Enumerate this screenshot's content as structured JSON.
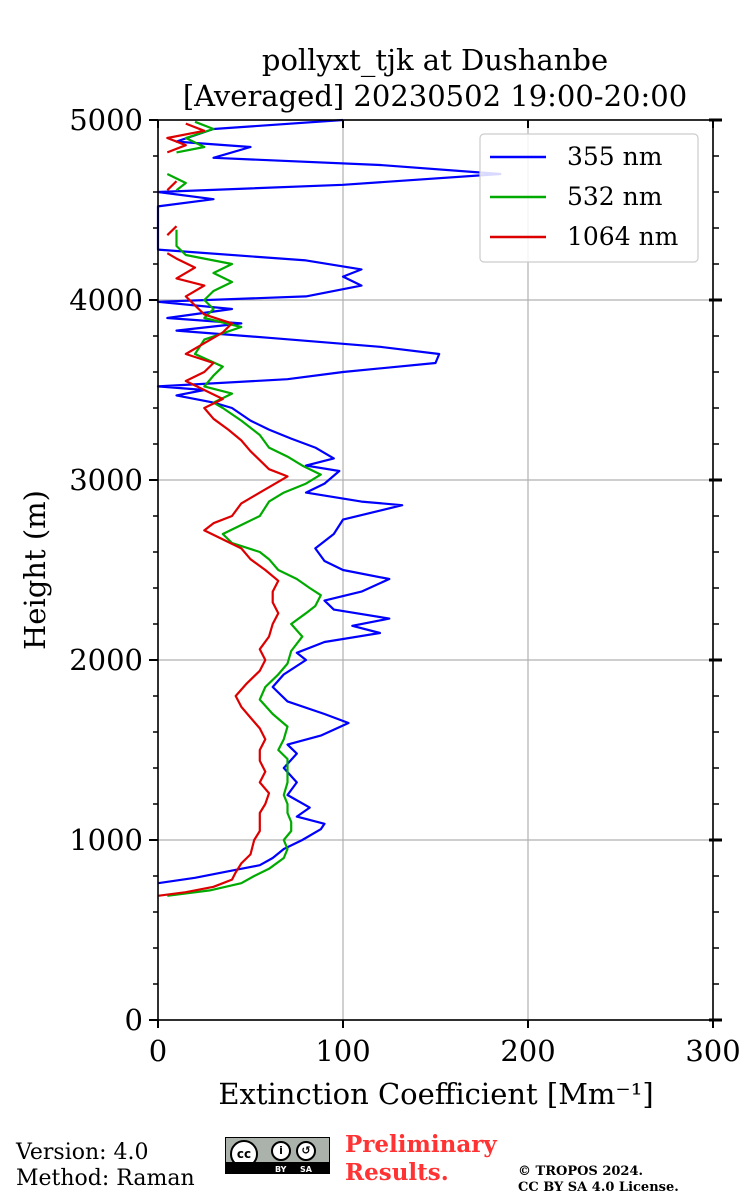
{
  "chart_data": {
    "type": "line",
    "title": [
      "pollyxt_tjk at Dushanbe",
      "[Averaged] 20230502 19:00-20:00"
    ],
    "xlabel": "Extinction Coefficient [Mm⁻¹]",
    "ylabel": "Height (m)",
    "xlim": [
      0,
      300
    ],
    "ylim": [
      0,
      5000
    ],
    "xticks": [
      0,
      100,
      200,
      300
    ],
    "yticks": [
      0,
      1000,
      2000,
      3000,
      4000,
      5000
    ],
    "grid": true,
    "legend_position": "upper-right",
    "series": [
      {
        "name": "355 nm",
        "color": "#0000ff",
        "points": [
          [
            0,
            760
          ],
          [
            20,
            790
          ],
          [
            40,
            830
          ],
          [
            55,
            860
          ],
          [
            62,
            900
          ],
          [
            68,
            950
          ],
          [
            78,
            1000
          ],
          [
            88,
            1060
          ],
          [
            90,
            1090
          ],
          [
            75,
            1130
          ],
          [
            82,
            1180
          ],
          [
            70,
            1250
          ],
          [
            75,
            1320
          ],
          [
            68,
            1400
          ],
          [
            75,
            1480
          ],
          [
            70,
            1530
          ],
          [
            88,
            1580
          ],
          [
            103,
            1650
          ],
          [
            90,
            1700
          ],
          [
            70,
            1770
          ],
          [
            62,
            1850
          ],
          [
            68,
            1920
          ],
          [
            80,
            2000
          ],
          [
            75,
            2040
          ],
          [
            90,
            2100
          ],
          [
            120,
            2150
          ],
          [
            105,
            2190
          ],
          [
            125,
            2230
          ],
          [
            95,
            2280
          ],
          [
            90,
            2330
          ],
          [
            110,
            2380
          ],
          [
            125,
            2450
          ],
          [
            100,
            2500
          ],
          [
            90,
            2550
          ],
          [
            85,
            2620
          ],
          [
            95,
            2700
          ],
          [
            100,
            2780
          ],
          [
            132,
            2860
          ],
          [
            110,
            2880
          ],
          [
            80,
            2930
          ],
          [
            90,
            2980
          ],
          [
            98,
            3050
          ],
          [
            80,
            3080
          ],
          [
            95,
            3120
          ],
          [
            85,
            3180
          ],
          [
            72,
            3230
          ],
          [
            60,
            3280
          ],
          [
            50,
            3330
          ],
          [
            40,
            3400
          ],
          [
            30,
            3430
          ],
          [
            10,
            3470
          ],
          [
            25,
            3500
          ],
          [
            0,
            3520
          ],
          [
            70,
            3560
          ],
          [
            100,
            3600
          ],
          [
            150,
            3650
          ],
          [
            152,
            3700
          ],
          [
            120,
            3740
          ],
          [
            60,
            3790
          ],
          [
            10,
            3830
          ],
          [
            45,
            3870
          ],
          [
            5,
            3900
          ],
          [
            40,
            3950
          ],
          [
            0,
            3990
          ],
          [
            80,
            4020
          ],
          [
            110,
            4080
          ],
          [
            100,
            4130
          ],
          [
            110,
            4170
          ],
          [
            80,
            4220
          ],
          [
            0,
            4280
          ],
          [
            0,
            4520
          ],
          [
            30,
            4560
          ],
          [
            0,
            4600
          ],
          [
            100,
            4640
          ],
          [
            185,
            4700
          ],
          [
            120,
            4750
          ],
          [
            30,
            4790
          ],
          [
            50,
            4850
          ],
          [
            10,
            4880
          ],
          [
            30,
            4950
          ],
          [
            100,
            5000
          ]
        ]
      },
      {
        "name": "532 nm",
        "color": "#00aa00",
        "points": [
          [
            5,
            690
          ],
          [
            28,
            720
          ],
          [
            45,
            760
          ],
          [
            52,
            800
          ],
          [
            60,
            840
          ],
          [
            68,
            900
          ],
          [
            70,
            950
          ],
          [
            68,
            1000
          ],
          [
            72,
            1050
          ],
          [
            72,
            1100
          ],
          [
            70,
            1150
          ],
          [
            70,
            1200
          ],
          [
            68,
            1250
          ],
          [
            70,
            1320
          ],
          [
            70,
            1400
          ],
          [
            70,
            1450
          ],
          [
            65,
            1500
          ],
          [
            68,
            1560
          ],
          [
            70,
            1630
          ],
          [
            62,
            1700
          ],
          [
            55,
            1780
          ],
          [
            58,
            1850
          ],
          [
            65,
            1920
          ],
          [
            70,
            1980
          ],
          [
            72,
            2050
          ],
          [
            78,
            2130
          ],
          [
            72,
            2200
          ],
          [
            80,
            2260
          ],
          [
            85,
            2300
          ],
          [
            88,
            2360
          ],
          [
            82,
            2400
          ],
          [
            75,
            2450
          ],
          [
            65,
            2500
          ],
          [
            60,
            2560
          ],
          [
            55,
            2600
          ],
          [
            40,
            2650
          ],
          [
            35,
            2700
          ],
          [
            45,
            2750
          ],
          [
            55,
            2800
          ],
          [
            60,
            2880
          ],
          [
            68,
            2930
          ],
          [
            80,
            2980
          ],
          [
            88,
            3030
          ],
          [
            78,
            3080
          ],
          [
            70,
            3130
          ],
          [
            60,
            3180
          ],
          [
            55,
            3250
          ],
          [
            45,
            3330
          ],
          [
            35,
            3400
          ],
          [
            30,
            3430
          ],
          [
            40,
            3480
          ],
          [
            25,
            3520
          ],
          [
            30,
            3580
          ],
          [
            35,
            3630
          ],
          [
            20,
            3700
          ],
          [
            25,
            3780
          ],
          [
            45,
            3850
          ],
          [
            25,
            3900
          ],
          [
            30,
            3950
          ],
          [
            25,
            4000
          ],
          [
            30,
            4050
          ],
          [
            40,
            4100
          ],
          [
            30,
            4150
          ],
          [
            40,
            4200
          ],
          [
            15,
            4250
          ],
          [
            10,
            4300
          ],
          [
            10,
            4390
          ],
          [
            null,
            null
          ],
          [
            10,
            4610
          ],
          [
            15,
            4650
          ],
          [
            5,
            4700
          ],
          [
            null,
            null
          ],
          [
            10,
            4820
          ],
          [
            25,
            4850
          ],
          [
            15,
            4900
          ],
          [
            30,
            4950
          ],
          [
            20,
            4990
          ]
        ]
      },
      {
        "name": "1064 nm",
        "color": "#dd0000",
        "points": [
          [
            0,
            690
          ],
          [
            15,
            710
          ],
          [
            30,
            740
          ],
          [
            40,
            780
          ],
          [
            42,
            820
          ],
          [
            45,
            870
          ],
          [
            50,
            920
          ],
          [
            52,
            1000
          ],
          [
            55,
            1050
          ],
          [
            55,
            1100
          ],
          [
            55,
            1150
          ],
          [
            58,
            1200
          ],
          [
            60,
            1260
          ],
          [
            55,
            1320
          ],
          [
            58,
            1380
          ],
          [
            55,
            1440
          ],
          [
            55,
            1500
          ],
          [
            58,
            1560
          ],
          [
            55,
            1620
          ],
          [
            50,
            1680
          ],
          [
            45,
            1740
          ],
          [
            42,
            1800
          ],
          [
            48,
            1870
          ],
          [
            55,
            1940
          ],
          [
            58,
            2000
          ],
          [
            55,
            2060
          ],
          [
            60,
            2130
          ],
          [
            62,
            2200
          ],
          [
            65,
            2260
          ],
          [
            62,
            2320
          ],
          [
            62,
            2380
          ],
          [
            65,
            2440
          ],
          [
            58,
            2500
          ],
          [
            50,
            2560
          ],
          [
            45,
            2620
          ],
          [
            35,
            2670
          ],
          [
            25,
            2720
          ],
          [
            30,
            2760
          ],
          [
            40,
            2800
          ],
          [
            45,
            2870
          ],
          [
            55,
            2930
          ],
          [
            65,
            2990
          ],
          [
            70,
            3020
          ],
          [
            60,
            3060
          ],
          [
            55,
            3110
          ],
          [
            50,
            3160
          ],
          [
            45,
            3220
          ],
          [
            38,
            3280
          ],
          [
            30,
            3340
          ],
          [
            25,
            3400
          ],
          [
            35,
            3450
          ],
          [
            25,
            3500
          ],
          [
            15,
            3550
          ],
          [
            25,
            3600
          ],
          [
            30,
            3650
          ],
          [
            15,
            3700
          ],
          [
            25,
            3760
          ],
          [
            35,
            3820
          ],
          [
            40,
            3870
          ],
          [
            25,
            3920
          ],
          [
            20,
            3970
          ],
          [
            15,
            4020
          ],
          [
            25,
            4080
          ],
          [
            10,
            4120
          ],
          [
            20,
            4180
          ],
          [
            10,
            4230
          ],
          [
            5,
            4260
          ],
          [
            null,
            null
          ],
          [
            5,
            4360
          ],
          [
            10,
            4410
          ],
          [
            null,
            null
          ],
          [
            5,
            4610
          ],
          [
            10,
            4660
          ],
          [
            null,
            null
          ],
          [
            5,
            4820
          ],
          [
            15,
            4860
          ],
          [
            5,
            4900
          ],
          [
            25,
            4940
          ],
          [
            15,
            4980
          ]
        ]
      }
    ]
  },
  "footer": {
    "version": "Version: 4.0",
    "method": "Method: Raman",
    "prelim_1": "Preliminary",
    "prelim_2": "Results.",
    "copyright_1": "© TROPOS 2024.",
    "copyright_2": "CC BY SA 4.0 License."
  },
  "license_badge": {
    "by": "BY",
    "sa": "SA"
  }
}
